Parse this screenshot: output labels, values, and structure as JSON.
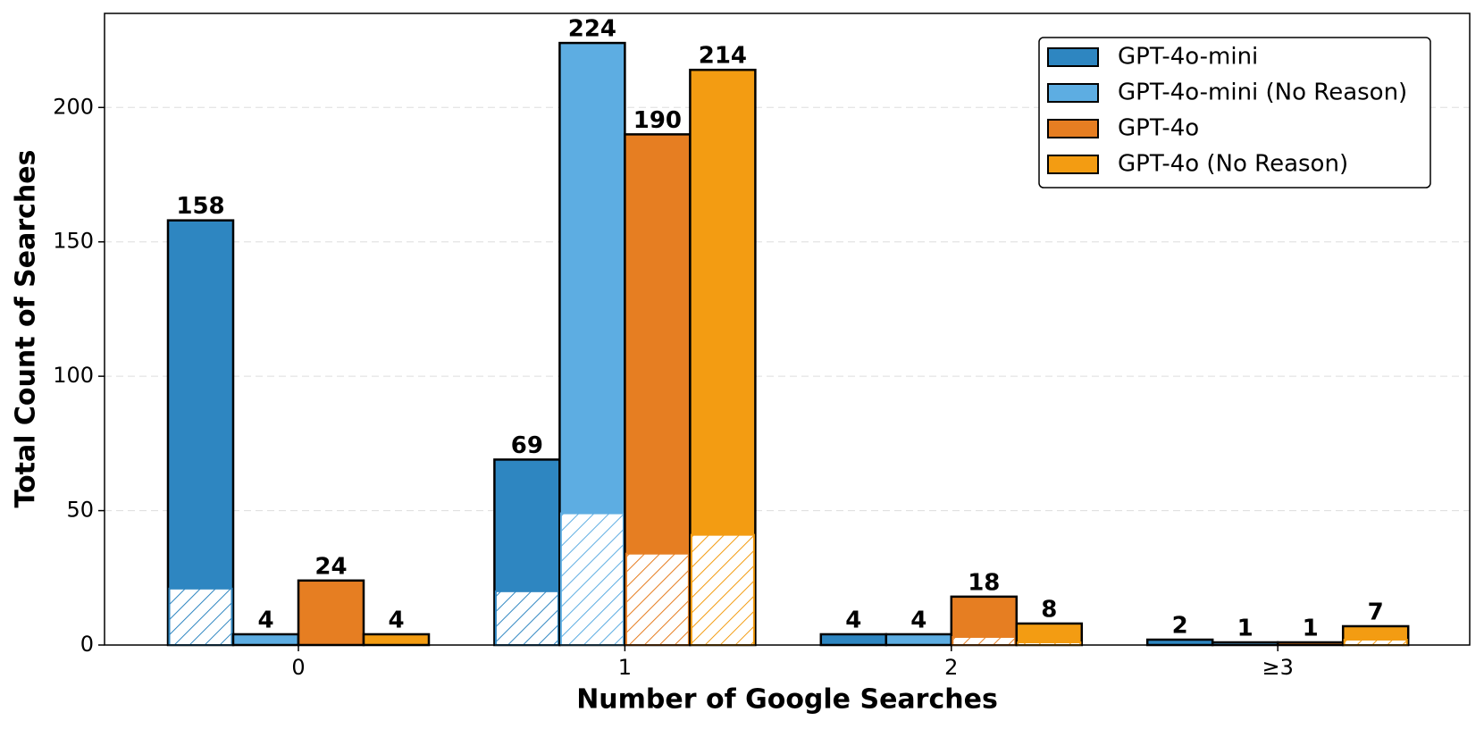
{
  "chart_data": {
    "type": "bar",
    "x_label": "Number of Google Searches",
    "y_label": "Total Count of Searches",
    "categories": [
      "0",
      "1",
      "2",
      "≥3"
    ],
    "series": [
      {
        "name": "GPT-4o-mini",
        "color": "#2e86c1",
        "values": [
          158,
          69,
          4,
          2
        ],
        "hatched_values": [
          21,
          20,
          0,
          0
        ]
      },
      {
        "name": "GPT-4o-mini (No Reason)",
        "color": "#5dade2",
        "values": [
          4,
          224,
          4,
          1
        ],
        "hatched_values": [
          0,
          49,
          0,
          0
        ]
      },
      {
        "name": "GPT-4o",
        "color": "#e67e22",
        "values": [
          24,
          190,
          18,
          1
        ],
        "hatched_values": [
          0,
          34,
          3,
          0
        ]
      },
      {
        "name": "GPT-4o (No Reason)",
        "color": "#f39c12",
        "values": [
          4,
          214,
          8,
          7
        ],
        "hatched_values": [
          0,
          41,
          1,
          2
        ]
      }
    ],
    "ylim": [
      0,
      235
    ],
    "yticks": [
      0,
      50,
      100,
      150,
      200
    ],
    "grid": true,
    "legend": "upper right"
  }
}
